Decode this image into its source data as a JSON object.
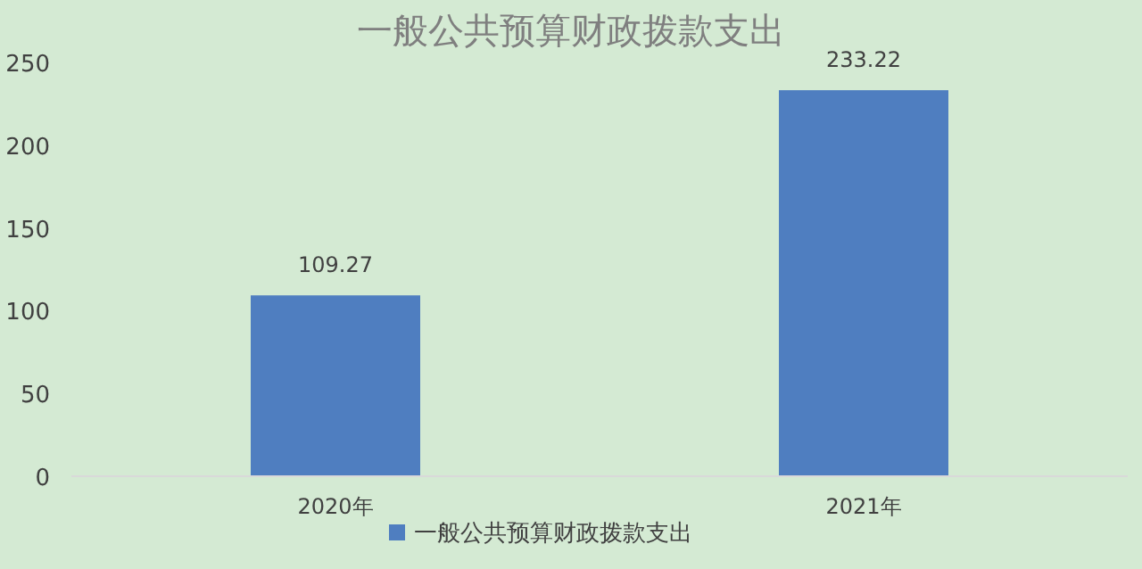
{
  "chart_data": {
    "type": "bar",
    "title": "一般公共预算财政拨款支出",
    "categories": [
      "2020年",
      "2021年"
    ],
    "series": [
      {
        "name": "一般公共预算财政拨款支出",
        "color": "#4f7ec0",
        "values": [
          109.27,
          233.22
        ]
      }
    ],
    "ylim": [
      0,
      250
    ],
    "yticks": [
      0,
      50,
      100,
      150,
      200,
      250
    ],
    "data_labels": true,
    "legend": "bottom"
  }
}
